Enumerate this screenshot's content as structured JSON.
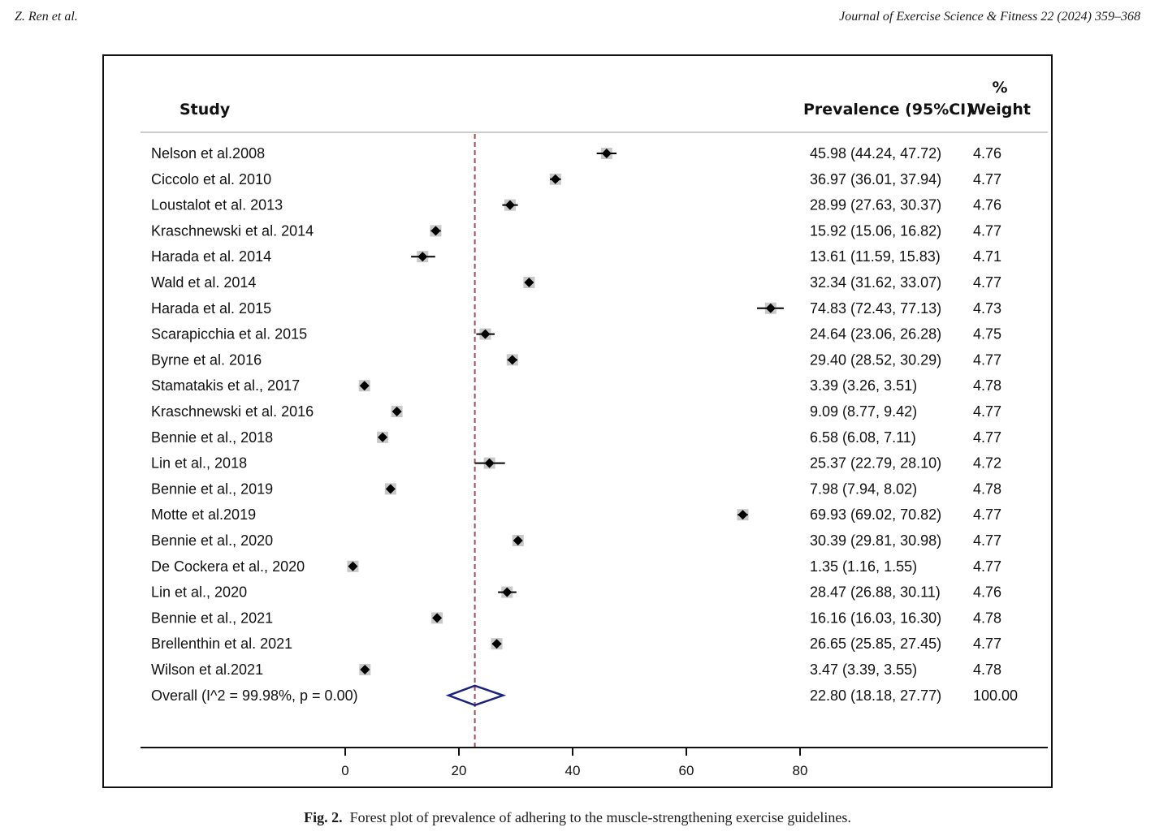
{
  "page_header": {
    "left": "Z. Ren et al.",
    "right": "Journal of Exercise Science & Fitness 22 (2024) 359–368"
  },
  "caption": {
    "label": "Fig. 2.",
    "text": "Forest plot of prevalence of adhering to the muscle-strengthening exercise guidelines."
  },
  "colors": {
    "marker": "#000000",
    "weight_box": "#c8c8c8",
    "reference_line": "#a05050",
    "overall_diamond": "#1a237e"
  },
  "chart_data": {
    "type": "forest",
    "columns": {
      "study": "Study",
      "estimate": "Prevalence (95%CI)",
      "weight_line1": "%",
      "weight_line2": "Weight"
    },
    "xlim": [
      0,
      80
    ],
    "ticks": [
      "0",
      "20",
      "40",
      "60",
      "80"
    ],
    "tick_values": [
      0,
      20,
      40,
      60,
      80
    ],
    "reference_value": 22.8,
    "studies": [
      {
        "label": "Nelson et al.2008",
        "est": 45.98,
        "lo": 44.24,
        "hi": 47.72,
        "ci_text": "45.98 (44.24, 47.72)",
        "weight": "4.76"
      },
      {
        "label": "Ciccolo et al. 2010",
        "est": 36.97,
        "lo": 36.01,
        "hi": 37.94,
        "ci_text": "36.97 (36.01, 37.94)",
        "weight": "4.77"
      },
      {
        "label": "Loustalot et al. 2013",
        "est": 28.99,
        "lo": 27.63,
        "hi": 30.37,
        "ci_text": "28.99 (27.63, 30.37)",
        "weight": "4.76"
      },
      {
        "label": "Kraschnewski et al. 2014",
        "est": 15.92,
        "lo": 15.06,
        "hi": 16.82,
        "ci_text": "15.92 (15.06, 16.82)",
        "weight": "4.77"
      },
      {
        "label": "Harada et al. 2014",
        "est": 13.61,
        "lo": 11.59,
        "hi": 15.83,
        "ci_text": "13.61 (11.59, 15.83)",
        "weight": "4.71"
      },
      {
        "label": "Wald et al. 2014",
        "est": 32.34,
        "lo": 31.62,
        "hi": 33.07,
        "ci_text": "32.34 (31.62, 33.07)",
        "weight": "4.77"
      },
      {
        "label": "Harada et al. 2015",
        "est": 74.83,
        "lo": 72.43,
        "hi": 77.13,
        "ci_text": "74.83 (72.43, 77.13)",
        "weight": "4.73"
      },
      {
        "label": "Scarapicchia et al. 2015",
        "est": 24.64,
        "lo": 23.06,
        "hi": 26.28,
        "ci_text": "24.64 (23.06, 26.28)",
        "weight": "4.75"
      },
      {
        "label": "Byrne et al. 2016",
        "est": 29.4,
        "lo": 28.52,
        "hi": 30.29,
        "ci_text": "29.40 (28.52, 30.29)",
        "weight": "4.77"
      },
      {
        "label": "Stamatakis et al., 2017",
        "est": 3.39,
        "lo": 3.26,
        "hi": 3.51,
        "ci_text": "3.39 (3.26, 3.51)",
        "weight": "4.78"
      },
      {
        "label": "Kraschnewski et al. 2016",
        "est": 9.09,
        "lo": 8.77,
        "hi": 9.42,
        "ci_text": "9.09 (8.77, 9.42)",
        "weight": "4.77"
      },
      {
        "label": "Bennie et al., 2018",
        "est": 6.58,
        "lo": 6.08,
        "hi": 7.11,
        "ci_text": "6.58 (6.08, 7.11)",
        "weight": "4.77"
      },
      {
        "label": "Lin et al., 2018",
        "est": 25.37,
        "lo": 22.79,
        "hi": 28.1,
        "ci_text": "25.37 (22.79, 28.10)",
        "weight": "4.72"
      },
      {
        "label": "Bennie et al., 2019",
        "est": 7.98,
        "lo": 7.94,
        "hi": 8.02,
        "ci_text": "7.98 (7.94, 8.02)",
        "weight": "4.78"
      },
      {
        "label": "Motte et al.2019",
        "est": 69.93,
        "lo": 69.02,
        "hi": 70.82,
        "ci_text": "69.93 (69.02, 70.82)",
        "weight": "4.77"
      },
      {
        "label": "Bennie et al., 2020",
        "est": 30.39,
        "lo": 29.81,
        "hi": 30.98,
        "ci_text": "30.39 (29.81, 30.98)",
        "weight": "4.77"
      },
      {
        "label": "De Cockera et al., 2020",
        "est": 1.35,
        "lo": 1.16,
        "hi": 1.55,
        "ci_text": "1.35 (1.16, 1.55)",
        "weight": "4.77"
      },
      {
        "label": "Lin et al., 2020",
        "est": 28.47,
        "lo": 26.88,
        "hi": 30.11,
        "ci_text": "28.47 (26.88, 30.11)",
        "weight": "4.76"
      },
      {
        "label": "Bennie et al., 2021",
        "est": 16.16,
        "lo": 16.03,
        "hi": 16.3,
        "ci_text": "16.16 (16.03, 16.30)",
        "weight": "4.78"
      },
      {
        "label": "Brellenthin et al. 2021",
        "est": 26.65,
        "lo": 25.85,
        "hi": 27.45,
        "ci_text": "26.65 (25.85, 27.45)",
        "weight": "4.77"
      },
      {
        "label": "Wilson et al.2021",
        "est": 3.47,
        "lo": 3.39,
        "hi": 3.55,
        "ci_text": "3.47 (3.39, 3.55)",
        "weight": "4.78"
      }
    ],
    "overall": {
      "label": "Overall  (I^2 = 99.98%, p = 0.00)",
      "est": 22.8,
      "lo": 18.18,
      "hi": 27.77,
      "ci_text": "22.80 (18.18, 27.77)",
      "weight": "100.00"
    }
  }
}
